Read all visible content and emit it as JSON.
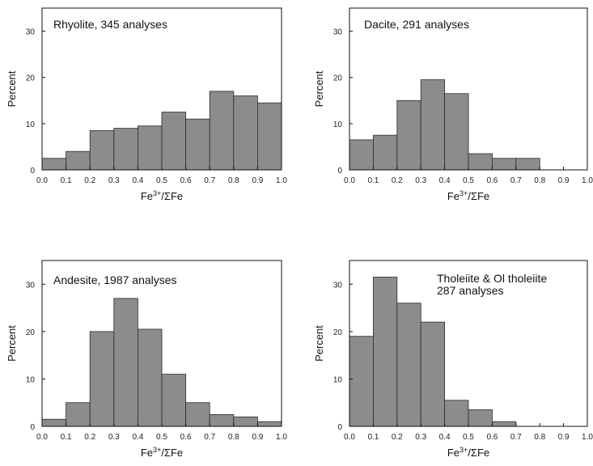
{
  "colors": {
    "bar_fill": "#8c8c8c",
    "bar_stroke": "#2a2a2a",
    "axis": "#111111"
  },
  "chart_data": [
    {
      "type": "bar",
      "title_lines": [
        "Rhyolite, 345 analyses"
      ],
      "xlabel": "Fe3+/ΣFe",
      "xlabel_main": "Fe",
      "xlabel_sup": "3+",
      "xlabel_rest": "/ΣFe",
      "ylabel": "Percent",
      "bin_edges": [
        0.0,
        0.1,
        0.2,
        0.3,
        0.4,
        0.5,
        0.6,
        0.7,
        0.8,
        0.9,
        1.0
      ],
      "values": [
        2.5,
        4,
        8.5,
        9,
        9.5,
        12.5,
        11,
        17,
        16,
        14.5
      ],
      "xlim": [
        0,
        1.0
      ],
      "ylim": [
        0,
        35
      ],
      "xticks": [
        "0.0",
        "0.1",
        "0.2",
        "0.3",
        "0.4",
        "0.5",
        "0.6",
        "0.7",
        "0.8",
        "0.9",
        "1.0"
      ],
      "yticks": [
        "0",
        "10",
        "20",
        "30"
      ]
    },
    {
      "type": "bar",
      "title_lines": [
        "Dacite, 291 analyses"
      ],
      "xlabel": "Fe3+/ΣFe",
      "xlabel_main": "Fe",
      "xlabel_sup": "3+",
      "xlabel_rest": "/ΣFe",
      "ylabel": "Percent",
      "bin_edges": [
        0.0,
        0.1,
        0.2,
        0.3,
        0.4,
        0.5,
        0.6,
        0.7,
        0.8
      ],
      "values": [
        6.5,
        7.5,
        15,
        19.5,
        16.5,
        3.5,
        2.5,
        2.5
      ],
      "xlim": [
        0,
        1.0
      ],
      "ylim": [
        0,
        35
      ],
      "xticks": [
        "0.0",
        "0.1",
        "0.2",
        "0.3",
        "0.4",
        "0.5",
        "0.6",
        "0.7",
        "0.8",
        "0.9",
        "1.0"
      ],
      "yticks": [
        "0",
        "10",
        "20",
        "30"
      ]
    },
    {
      "type": "bar",
      "title_lines": [
        "Andesite, 1987 analyses"
      ],
      "xlabel": "Fe3+/ΣFe",
      "xlabel_main": "Fe",
      "xlabel_sup": "3+",
      "xlabel_rest": "/ΣFe",
      "ylabel": "Percent",
      "bin_edges": [
        0.0,
        0.1,
        0.2,
        0.3,
        0.4,
        0.5,
        0.6,
        0.7,
        0.8,
        0.9,
        1.0
      ],
      "values": [
        1.5,
        5,
        20,
        27,
        20.5,
        11,
        5,
        2.5,
        2,
        1
      ],
      "xlim": [
        0,
        1.0
      ],
      "ylim": [
        0,
        35
      ],
      "xticks": [
        "0.0",
        "0.1",
        "0.2",
        "0.3",
        "0.4",
        "0.5",
        "0.6",
        "0.7",
        "0.8",
        "0.9",
        "1.0"
      ],
      "yticks": [
        "0",
        "10",
        "20",
        "30"
      ]
    },
    {
      "type": "bar",
      "title_lines": [
        "Tholeiite & Ol tholeiite",
        "287 analyses"
      ],
      "xlabel": "Fe3+/ΣFe",
      "xlabel_main": "Fe",
      "xlabel_sup": "3+",
      "xlabel_rest": "/ΣFe",
      "ylabel": "Percent",
      "bin_edges": [
        0.0,
        0.1,
        0.2,
        0.3,
        0.4,
        0.5,
        0.6,
        0.7
      ],
      "values": [
        19,
        31.5,
        26,
        22,
        5.5,
        3.5,
        1
      ],
      "xlim": [
        0,
        1.0
      ],
      "ylim": [
        0,
        35
      ],
      "xticks": [
        "0.0",
        "0.1",
        "0.2",
        "0.3",
        "0.4",
        "0.5",
        "0.6",
        "0.7",
        "0.8",
        "0.9",
        "1.0"
      ],
      "yticks": [
        "0",
        "10",
        "20",
        "30"
      ]
    }
  ]
}
